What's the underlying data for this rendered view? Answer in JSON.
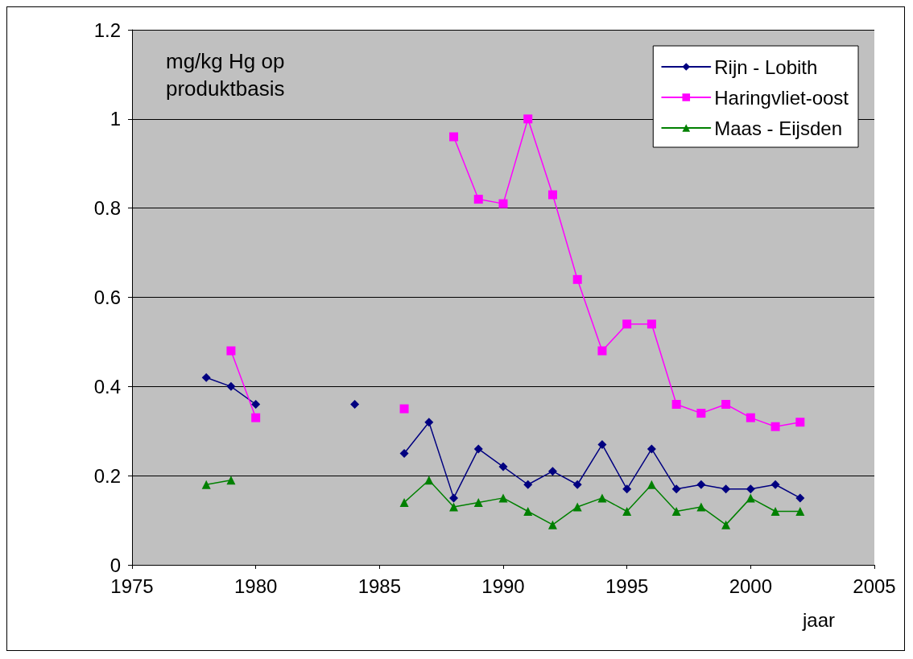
{
  "chart_data": {
    "type": "line",
    "ylabel": "mg/kg Hg op\nproduktbasis",
    "xlabel": "jaar",
    "xlim": [
      1975,
      2005
    ],
    "xticks": [
      1975,
      1980,
      1985,
      1990,
      1995,
      2000,
      2005
    ],
    "ylim": [
      0,
      1.2
    ],
    "yticks": [
      0,
      0.2,
      0.4,
      0.6,
      0.8,
      1,
      1.2
    ],
    "grid": "y",
    "legend": "top right",
    "line_style": "solid",
    "series": [
      {
        "name": "Rijn - Lobith",
        "color": "#000080",
        "marker": "diamond",
        "x": [
          1978,
          1979,
          1980,
          1981,
          1984,
          1985,
          1986,
          1987,
          1988,
          1989,
          1990,
          1991,
          1992,
          1993,
          1994,
          1995,
          1996,
          1997,
          1998,
          1999,
          2000,
          2001,
          2002
        ],
        "values": [
          0.42,
          0.4,
          0.36,
          null,
          0.36,
          null,
          0.25,
          0.32,
          0.15,
          0.26,
          0.22,
          0.18,
          0.21,
          0.18,
          0.27,
          0.17,
          0.26,
          0.17,
          0.18,
          0.17,
          0.17,
          0.18,
          0.15
        ]
      },
      {
        "name": "Haringvliet-oost",
        "color": "#ff00ff",
        "marker": "square",
        "x": [
          1979,
          1980,
          1981,
          1986,
          1987,
          1988,
          1989,
          1990,
          1991,
          1992,
          1993,
          1994,
          1995,
          1996,
          1997,
          1998,
          1999,
          2000,
          2001,
          2002
        ],
        "values": [
          0.48,
          0.33,
          null,
          0.35,
          null,
          0.96,
          0.82,
          0.81,
          1.0,
          0.83,
          0.64,
          0.48,
          0.54,
          0.54,
          0.36,
          0.34,
          0.36,
          0.33,
          0.31,
          0.32
        ]
      },
      {
        "name": "Maas - Eijsden",
        "color": "#008000",
        "marker": "triangle",
        "x": [
          1978,
          1979,
          1980,
          1986,
          1987,
          1988,
          1989,
          1990,
          1991,
          1992,
          1993,
          1994,
          1995,
          1996,
          1997,
          1998,
          1999,
          2000,
          2001,
          2002
        ],
        "values": [
          0.18,
          0.19,
          null,
          0.14,
          0.19,
          0.13,
          0.14,
          0.15,
          0.12,
          0.09,
          0.13,
          0.15,
          0.12,
          0.18,
          0.12,
          0.13,
          0.09,
          0.15,
          0.12,
          0.12
        ]
      }
    ]
  }
}
